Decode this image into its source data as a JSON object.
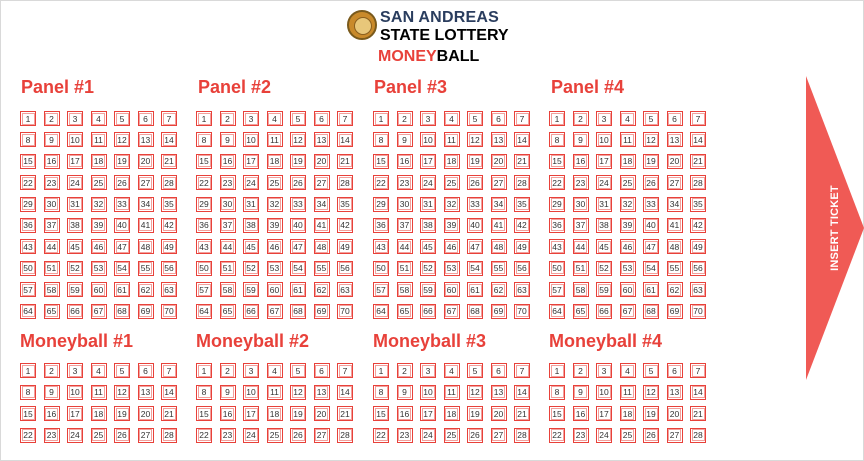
{
  "header": {
    "line1": "SAN ANDREAS",
    "line2": "STATE LOTTERY",
    "brand_red": "MONEY",
    "brand_black": "BALL"
  },
  "panels": [
    {
      "title": "Panel #1"
    },
    {
      "title": "Panel #2"
    },
    {
      "title": "Panel #3"
    },
    {
      "title": "Panel #4"
    }
  ],
  "moneyballs": [
    {
      "title": "Moneyball #1"
    },
    {
      "title": "Moneyball #2"
    },
    {
      "title": "Moneyball #3"
    },
    {
      "title": "Moneyball #4"
    }
  ],
  "panel_numbers": [
    "1",
    "2",
    "3",
    "4",
    "5",
    "6",
    "7",
    "8",
    "9",
    "10",
    "11",
    "12",
    "13",
    "14",
    "15",
    "16",
    "17",
    "18",
    "19",
    "20",
    "21",
    "22",
    "23",
    "24",
    "25",
    "26",
    "27",
    "28",
    "29",
    "30",
    "31",
    "32",
    "33",
    "34",
    "35",
    "36",
    "37",
    "38",
    "39",
    "40",
    "41",
    "42",
    "43",
    "44",
    "45",
    "46",
    "47",
    "48",
    "49",
    "50",
    "51",
    "52",
    "53",
    "54",
    "55",
    "56",
    "57",
    "58",
    "59",
    "60",
    "61",
    "62",
    "63",
    "64",
    "65",
    "66",
    "67",
    "68",
    "69",
    "70"
  ],
  "moneyball_numbers": [
    "1",
    "2",
    "3",
    "4",
    "5",
    "6",
    "7",
    "8",
    "9",
    "10",
    "11",
    "12",
    "13",
    "14",
    "15",
    "16",
    "17",
    "18",
    "19",
    "20",
    "21",
    "22",
    "23",
    "24",
    "25",
    "26",
    "27",
    "28"
  ],
  "insert_button": {
    "label": "INSERT TICKET"
  },
  "colors": {
    "accent": "#e8413a",
    "arrow": "#f05a55",
    "title_blue": "#2a3d5e"
  }
}
